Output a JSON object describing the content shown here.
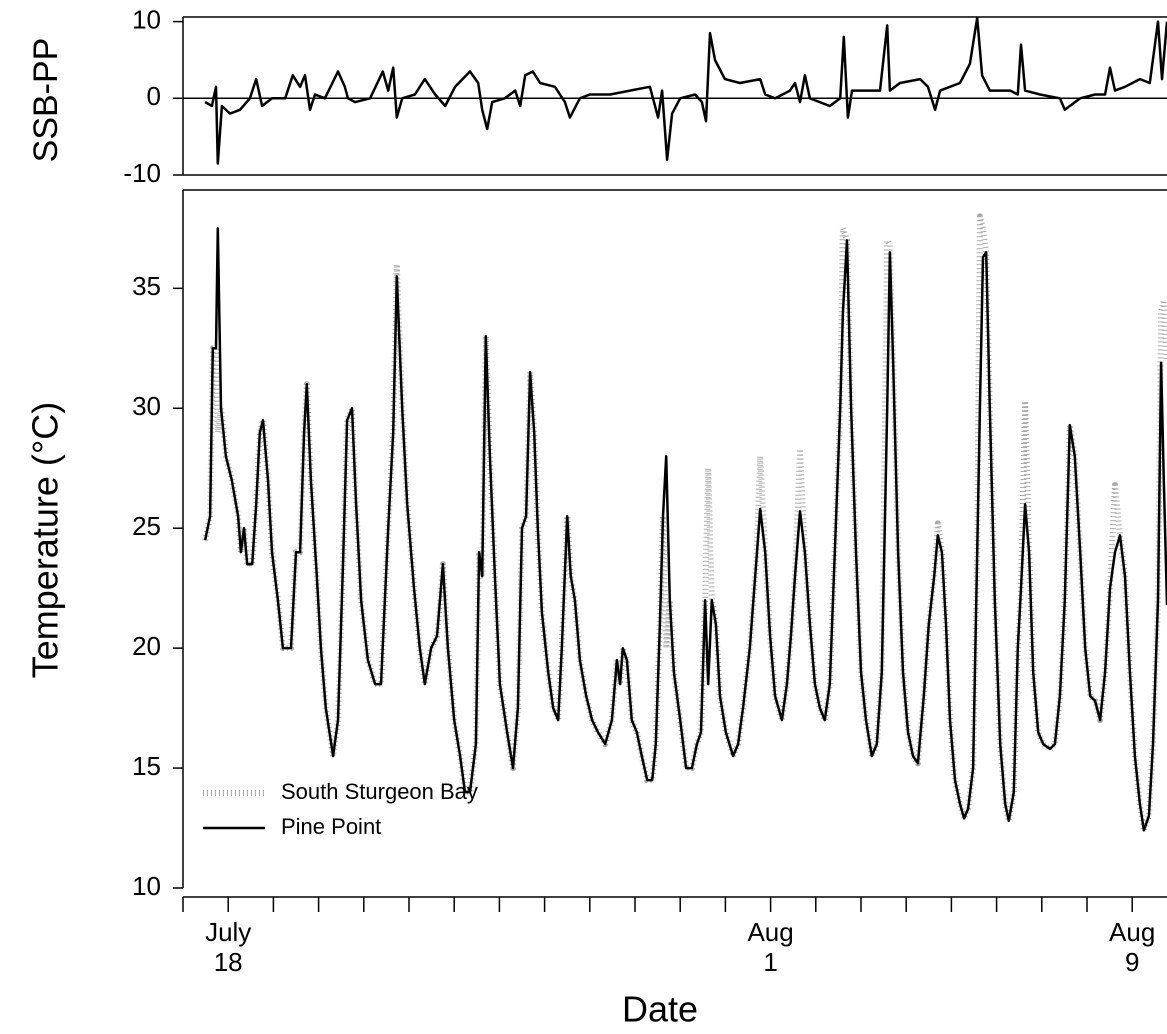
{
  "chart_data": [
    {
      "type": "line",
      "ylabel": "SSB-PP",
      "ylim": [
        -10,
        10.6
      ],
      "yticks": [
        -10,
        0,
        10
      ],
      "xlim": [
        0,
        21.77
      ],
      "hline": 0,
      "x": [
        0.49,
        0.64,
        0.73,
        0.77,
        0.86,
        1.04,
        1.26,
        1.48,
        1.62,
        1.75,
        1.97,
        2.26,
        2.43,
        2.59,
        2.7,
        2.81,
        2.92,
        3.14,
        3.43,
        3.58,
        3.65,
        3.81,
        4.14,
        4.42,
        4.54,
        4.65,
        4.73,
        4.85,
        5.13,
        5.35,
        5.58,
        5.8,
        6.02,
        6.35,
        6.53,
        6.62,
        6.73,
        6.84,
        7.12,
        7.35,
        7.46,
        7.57,
        7.74,
        7.9,
        8.23,
        8.45,
        8.56,
        8.78,
        9.0,
        9.45,
        9.89,
        10.33,
        10.51,
        10.6,
        10.71,
        10.82,
        11.0,
        11.33,
        11.48,
        11.57,
        11.66,
        11.77,
        11.99,
        12.32,
        12.77,
        12.88,
        13.1,
        13.43,
        13.54,
        13.65,
        13.76,
        13.87,
        14.31,
        14.54,
        14.62,
        14.71,
        14.8,
        15.09,
        15.42,
        15.58,
        15.64,
        15.86,
        16.31,
        16.48,
        16.64,
        16.75,
        17.19,
        17.41,
        17.57,
        17.68,
        17.85,
        18.3,
        18.47,
        18.54,
        18.63,
        18.96,
        19.4,
        19.51,
        19.85,
        20.18,
        20.4,
        20.51,
        20.62,
        20.84,
        21.17,
        21.39,
        21.57,
        21.66,
        21.77
      ],
      "series": [
        {
          "color": "#000000",
          "linestyle": "solid",
          "values": [
            -0.5,
            -1,
            1.5,
            -8.5,
            -1,
            -2,
            -1.5,
            0,
            2.5,
            -1,
            0,
            0,
            3,
            1.5,
            3,
            -1.5,
            0.5,
            0,
            3.5,
            1.5,
            0,
            -0.5,
            0,
            3.5,
            1,
            4,
            -2.5,
            0,
            0.5,
            2.5,
            0.5,
            -1,
            1.5,
            3.5,
            2,
            -1.5,
            -4,
            -0.5,
            0,
            1,
            -1,
            3,
            3.5,
            2,
            1.5,
            -0.5,
            -2.5,
            0,
            0.5,
            0.5,
            1,
            1.5,
            -2.5,
            1,
            -8,
            -2,
            0,
            0.5,
            -0.5,
            -3,
            8.5,
            5,
            2.5,
            2,
            2.5,
            0.5,
            0,
            1,
            2,
            -0.5,
            3,
            0,
            -1,
            0,
            8,
            -2.5,
            1,
            1,
            1,
            9.5,
            1,
            2,
            2.5,
            1.5,
            -1.5,
            1,
            2,
            4.5,
            10.5,
            3,
            1,
            1,
            0.5,
            7,
            1,
            0.5,
            0,
            -1.5,
            0,
            0.5,
            0.5,
            4,
            1,
            1.5,
            2.5,
            2,
            10,
            2.5,
            10
          ]
        }
      ]
    },
    {
      "type": "line",
      "ylabel": "Temperature (°C)",
      "xlabel": "Date",
      "ylim": [
        10,
        39.1
      ],
      "yticks": [
        10,
        15,
        20,
        25,
        30,
        35
      ],
      "xlim": [
        0,
        21.77
      ],
      "legend": "lower left",
      "xticks": [
        {
          "value": 0,
          "label": null
        },
        {
          "value": 1,
          "label": "July\n18"
        },
        {
          "value": 2,
          "label": null
        },
        {
          "value": 3,
          "label": null
        },
        {
          "value": 4,
          "label": null
        },
        {
          "value": 5,
          "label": null
        },
        {
          "value": 6,
          "label": null
        },
        {
          "value": 7,
          "label": null
        },
        {
          "value": 8,
          "label": null
        },
        {
          "value": 9,
          "label": null
        },
        {
          "value": 10,
          "label": null
        },
        {
          "value": 11,
          "label": null
        },
        {
          "value": 12,
          "label": null
        },
        {
          "value": 13,
          "label": "Aug\n1"
        },
        {
          "value": 14,
          "label": null
        },
        {
          "value": 15,
          "label": null
        },
        {
          "value": 16,
          "label": null
        },
        {
          "value": 17,
          "label": null
        },
        {
          "value": 18,
          "label": null
        },
        {
          "value": 19,
          "label": null
        },
        {
          "value": 20,
          "label": null
        },
        {
          "value": 21,
          "label": "Aug\n9"
        }
      ],
      "x": [
        0.49,
        0.6,
        0.66,
        0.73,
        0.77,
        0.84,
        0.95,
        1.08,
        1.22,
        1.28,
        1.35,
        1.42,
        1.53,
        1.62,
        1.7,
        1.77,
        1.88,
        1.97,
        2.1,
        2.21,
        2.39,
        2.5,
        2.59,
        2.68,
        2.74,
        2.83,
        2.96,
        3.05,
        3.16,
        3.32,
        3.43,
        3.54,
        3.63,
        3.74,
        3.83,
        3.94,
        4.09,
        4.25,
        4.38,
        4.54,
        4.65,
        4.73,
        4.85,
        4.96,
        5.11,
        5.24,
        5.35,
        5.49,
        5.62,
        5.75,
        5.86,
        6.0,
        6.13,
        6.24,
        6.35,
        6.48,
        6.55,
        6.62,
        6.7,
        6.79,
        6.9,
        7.01,
        7.17,
        7.3,
        7.41,
        7.5,
        7.59,
        7.68,
        7.77,
        7.85,
        7.94,
        8.08,
        8.19,
        8.3,
        8.38,
        8.5,
        8.58,
        8.67,
        8.78,
        8.92,
        9.05,
        9.18,
        9.34,
        9.49,
        9.6,
        9.67,
        9.73,
        9.82,
        9.93,
        10.04,
        10.15,
        10.27,
        10.38,
        10.46,
        10.55,
        10.62,
        10.69,
        10.77,
        10.86,
        11.0,
        11.13,
        11.26,
        11.37,
        11.46,
        11.55,
        11.62,
        11.7,
        11.79,
        11.88,
        12.01,
        12.17,
        12.28,
        12.39,
        12.54,
        12.68,
        12.77,
        12.88,
        12.99,
        13.1,
        13.25,
        13.36,
        13.45,
        13.54,
        13.65,
        13.76,
        13.87,
        13.98,
        14.09,
        14.2,
        14.31,
        14.42,
        14.54,
        14.6,
        14.69,
        14.78,
        14.89,
        15.0,
        15.11,
        15.24,
        15.35,
        15.46,
        15.58,
        15.64,
        15.71,
        15.82,
        15.93,
        16.04,
        16.15,
        16.26,
        16.39,
        16.5,
        16.62,
        16.7,
        16.79,
        16.88,
        16.97,
        17.08,
        17.19,
        17.28,
        17.37,
        17.48,
        17.57,
        17.63,
        17.7,
        17.77,
        17.85,
        17.96,
        18.08,
        18.19,
        18.27,
        18.38,
        18.47,
        18.54,
        18.63,
        18.72,
        18.81,
        18.92,
        19.03,
        19.18,
        19.29,
        19.4,
        19.51,
        19.62,
        19.73,
        19.85,
        19.96,
        20.07,
        20.18,
        20.29,
        20.4,
        20.51,
        20.62,
        20.73,
        20.84,
        20.95,
        21.06,
        21.17,
        21.26,
        21.37,
        21.46,
        21.57,
        21.64,
        21.7,
        21.77
      ],
      "series": [
        {
          "name": "South Sturgeon Bay",
          "color": "#aaaaaa",
          "linestyle": "dotted",
          "values": [
            24.5,
            25.5,
            32.5,
            32.5,
            29,
            30,
            28,
            27,
            25.5,
            24,
            25,
            23.5,
            23.5,
            26,
            29,
            29.5,
            27,
            24,
            22,
            20,
            20,
            24,
            24,
            29,
            31,
            27,
            23,
            20,
            17.5,
            15.5,
            17,
            23.5,
            29.5,
            30,
            26,
            22,
            19.5,
            18.5,
            18.5,
            25,
            29,
            36,
            30,
            26,
            22.5,
            20,
            18.5,
            20,
            20.5,
            23.5,
            20,
            17,
            15.5,
            14,
            14,
            16,
            24,
            23,
            33,
            28,
            23,
            18.5,
            16.5,
            15,
            17.5,
            25,
            25.5,
            31.5,
            29,
            25,
            21.5,
            19,
            17.5,
            17,
            20,
            25.5,
            23,
            22,
            19.5,
            18,
            17,
            16.5,
            16,
            17,
            19.5,
            18.5,
            20,
            19.5,
            17,
            16.5,
            15.5,
            14.5,
            14.5,
            16,
            21,
            25.5,
            20,
            22,
            19,
            17,
            15,
            15,
            16,
            16.5,
            22,
            27.5,
            22,
            21,
            18,
            16.5,
            15.5,
            16,
            17.5,
            20,
            23.5,
            28,
            24,
            20.5,
            18,
            17,
            18.5,
            20.5,
            23,
            28.3,
            24,
            21,
            18.5,
            17.5,
            17,
            18.5,
            24,
            30,
            37.5,
            37,
            30,
            24,
            19,
            17,
            15.5,
            16,
            19,
            37,
            36.8,
            32,
            24,
            19,
            16.5,
            15.5,
            15.2,
            18,
            21,
            23,
            25.2,
            24,
            21,
            17,
            14.5,
            13.5,
            12.9,
            13.3,
            15,
            24,
            38,
            37.5,
            36.5,
            30,
            22,
            16,
            13.5,
            12.8,
            14,
            20,
            22.5,
            30.3,
            24,
            19,
            16.5,
            16,
            15.8,
            16,
            18,
            22,
            29.3,
            28,
            24,
            20,
            18,
            17.8,
            17,
            19,
            22.5,
            26.8,
            24.7,
            23,
            19,
            15.5,
            13.5,
            12.4,
            13,
            16,
            22,
            34,
            34.5,
            32
          ]
        },
        {
          "name": "Pine Point",
          "color": "#000000",
          "linestyle": "solid",
          "values": [
            24.5,
            25.5,
            32.5,
            32.5,
            37.5,
            30,
            28,
            27,
            25.5,
            24,
            25,
            23.5,
            23.5,
            26,
            29,
            29.5,
            27,
            24,
            22,
            20,
            20,
            24,
            24,
            29,
            31,
            27,
            23,
            20,
            17.5,
            15.5,
            17,
            23.5,
            29.5,
            30,
            26,
            22,
            19.5,
            18.5,
            18.5,
            25,
            29,
            35.5,
            30,
            26,
            22.5,
            20,
            18.5,
            20,
            20.5,
            23.5,
            20,
            17,
            15.5,
            14,
            14,
            16,
            24,
            23,
            33,
            28,
            23,
            18.5,
            16.5,
            15,
            17.5,
            25,
            25.5,
            31.5,
            29,
            25,
            21.5,
            19,
            17.5,
            17,
            20,
            25.5,
            23,
            22,
            19.5,
            18,
            17,
            16.5,
            16,
            17,
            19.5,
            18.5,
            20,
            19.5,
            17,
            16.5,
            15.5,
            14.5,
            14.5,
            16,
            21,
            25.5,
            28,
            22,
            19,
            17,
            15,
            15,
            16,
            16.5,
            22,
            18.5,
            22,
            21,
            18,
            16.5,
            15.5,
            16,
            17.5,
            20,
            23.5,
            25.8,
            24,
            20.5,
            18,
            17,
            18.5,
            20.5,
            23,
            25.7,
            24,
            21,
            18.5,
            17.5,
            17,
            18.5,
            24,
            30,
            34,
            37,
            30,
            24,
            19,
            17,
            15.5,
            16,
            19,
            30,
            36.5,
            32,
            24,
            19,
            16.5,
            15.5,
            15.2,
            18,
            21,
            23,
            24.7,
            24,
            21,
            17,
            14.5,
            13.5,
            12.9,
            13.3,
            15,
            24,
            30,
            36.3,
            36.5,
            30,
            22,
            16,
            13.5,
            12.8,
            14,
            20,
            22.5,
            26,
            24,
            19,
            16.5,
            16,
            15.8,
            16,
            18,
            22,
            29.3,
            28,
            24,
            20,
            18,
            17.8,
            17,
            19,
            22.5,
            24,
            24.7,
            23,
            19,
            15.5,
            13.5,
            12.4,
            13,
            16,
            22,
            31.9,
            27,
            21.8
          ]
        }
      ]
    }
  ]
}
